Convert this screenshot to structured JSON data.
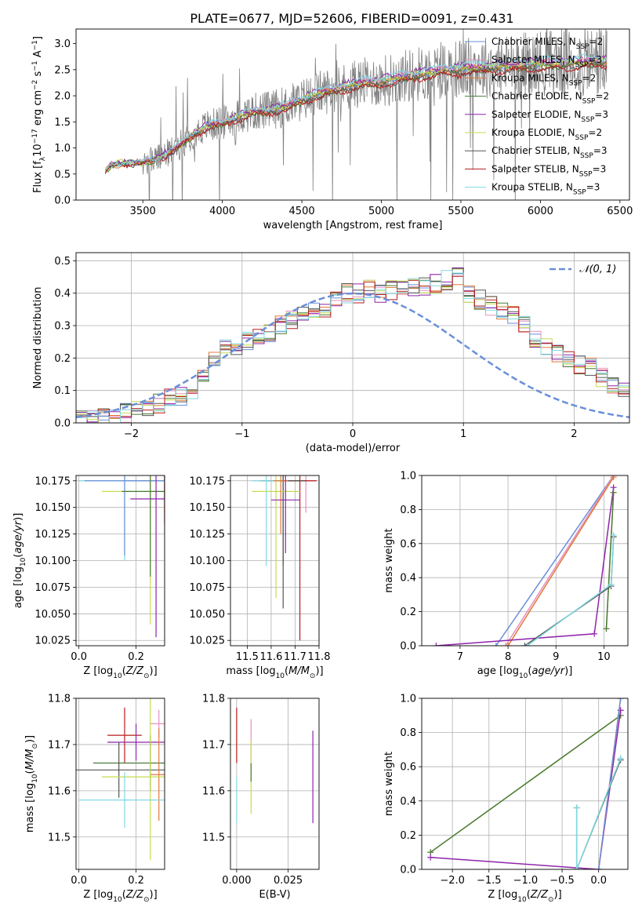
{
  "title": "PLATE=0677, MJD=52606, FIBERID=0091, z=0.431",
  "chart_data": [
    {
      "id": "spectrum",
      "type": "line",
      "xlabel": "wavelength [Angstrom, rest frame]",
      "ylabel": "Flux [f$_\\lambda$10$^{-17}$ erg cm$^{-2}$ s$^{-1}$ A$^{-1}$]",
      "ylabel_parts": [
        "Flux [f",
        "λ",
        "10",
        "−17",
        " erg cm",
        "−2",
        " s",
        "−1",
        " A",
        "−1",
        "]"
      ],
      "xlim": [
        3080,
        6560
      ],
      "ylim": [
        0,
        3.28
      ],
      "xticks": [
        3500,
        4000,
        4500,
        5000,
        5500,
        6000,
        6500
      ],
      "yticks": [
        0.0,
        0.5,
        1.0,
        1.5,
        2.0,
        2.5,
        3.0
      ],
      "grid": false,
      "legend_position": "top-right",
      "data_line": {
        "color": "#808080",
        "x_range": [
          3265,
          6420
        ]
      },
      "model_shape": {
        "x": [
          3265,
          3300,
          3400,
          3500,
          3600,
          3700,
          3800,
          3900,
          4000,
          4100,
          4200,
          4300,
          4400,
          4500,
          4600,
          4700,
          4800,
          4900,
          5000,
          5100,
          5200,
          5300,
          5400,
          5500,
          5600,
          5700,
          5800,
          5900,
          6000,
          6100,
          6200,
          6300,
          6420
        ],
        "y": [
          0.55,
          0.68,
          0.72,
          0.72,
          0.8,
          0.98,
          1.22,
          1.42,
          1.48,
          1.6,
          1.7,
          1.72,
          1.8,
          1.92,
          2.05,
          2.12,
          2.2,
          2.26,
          2.28,
          2.35,
          2.4,
          2.45,
          2.5,
          2.52,
          2.55,
          2.56,
          2.58,
          2.6,
          2.62,
          2.62,
          2.64,
          2.65,
          2.68
        ]
      },
      "series": [
        {
          "name": "Chabrier MILES, N$_{SSP}$=2",
          "label_prefix": "Chabrier MILES, N",
          "label_sub": "SSP",
          "label_suffix": "=2",
          "color": "#6a8fd8",
          "scale": 1.0
        },
        {
          "name": "Salpeter MILES, N$_{SSP}$=3",
          "label_prefix": "Salpeter MILES, N",
          "label_sub": "SSP",
          "label_suffix": "=3",
          "color": "#e88fc0",
          "scale": 1.01
        },
        {
          "name": "Kroupa MILES, N$_{SSP}$=2",
          "label_prefix": "Kroupa MILES, N",
          "label_sub": "SSP",
          "label_suffix": "=2",
          "color": "#e07838",
          "scale": 0.99
        },
        {
          "name": "Chabrier ELODIE, N$_{SSP}$=2",
          "label_prefix": "Chabrier ELODIE, N",
          "label_sub": "SSP",
          "label_suffix": "=2",
          "color": "#4a7a3a",
          "scale": 0.98
        },
        {
          "name": "Salpeter ELODIE, N$_{SSP}$=3",
          "label_prefix": "Salpeter ELODIE, N",
          "label_sub": "SSP",
          "label_suffix": "=3",
          "color": "#8e24aa",
          "scale": 1.02
        },
        {
          "name": "Kroupa ELODIE, N$_{SSP}$=2",
          "label_prefix": "Kroupa ELODIE, N",
          "label_sub": "SSP",
          "label_suffix": "=2",
          "color": "#c5dc50",
          "scale": 1.0
        },
        {
          "name": "Chabrier STELIB, N$_{SSP}$=3",
          "label_prefix": "Chabrier STELIB, N",
          "label_sub": "SSP",
          "label_suffix": "=3",
          "color": "#555555",
          "scale": 0.97
        },
        {
          "name": "Salpeter STELIB, N$_{SSP}$=3",
          "label_prefix": "Salpeter STELIB, N",
          "label_sub": "SSP",
          "label_suffix": "=3",
          "color": "#b71c1c",
          "scale": 0.96
        },
        {
          "name": "Kroupa STELIB, N$_{SSP}$=3",
          "label_prefix": "Kroupa STELIB, N",
          "label_sub": "SSP",
          "label_suffix": "=3",
          "color": "#80d8e0",
          "scale": 1.03
        }
      ]
    },
    {
      "id": "residuals",
      "type": "histogram",
      "xlabel": "(data-model)/error",
      "ylabel": "Normed distribution",
      "xlim": [
        -2.5,
        2.5
      ],
      "ylim": [
        0,
        0.525
      ],
      "xticks": [
        -2,
        -1,
        0,
        1,
        2
      ],
      "yticks": [
        0.0,
        0.1,
        0.2,
        0.3,
        0.4,
        0.5
      ],
      "grid": true,
      "legend_position": "top-right",
      "normal_curve": {
        "name": "𝒩(0, 1)",
        "color": "#6a8fd8"
      },
      "bins": {
        "start": -2.5,
        "width": 0.1
      },
      "base_heights": [
        0.01,
        0.01,
        0.02,
        0.02,
        0.03,
        0.04,
        0.05,
        0.06,
        0.08,
        0.08,
        0.09,
        0.14,
        0.2,
        0.24,
        0.22,
        0.25,
        0.26,
        0.28,
        0.3,
        0.32,
        0.33,
        0.34,
        0.35,
        0.38,
        0.4,
        0.4,
        0.41,
        0.4,
        0.41,
        0.42,
        0.42,
        0.42,
        0.43,
        0.44,
        0.45,
        0.4,
        0.38,
        0.36,
        0.35,
        0.33,
        0.3,
        0.26,
        0.24,
        0.21,
        0.2,
        0.18,
        0.17,
        0.14,
        0.12,
        0.1
      ],
      "series_colors": [
        "#6a8fd8",
        "#e88fc0",
        "#e07838",
        "#4a7a3a",
        "#8e24aa",
        "#c5dc50",
        "#555555",
        "#b71c1c",
        "#80d8e0"
      ]
    },
    {
      "id": "age-vs-Z",
      "type": "errorbar",
      "xlabel": "Z [log$_{10}$(Z/Z$_\\odot$)]",
      "ylabel": "age  [log$_{10}$(age/yr)]",
      "xlim": [
        -0.01,
        0.3
      ],
      "ylim": [
        10.02,
        10.18
      ],
      "xticks": [
        0.0,
        0.2
      ],
      "yticks": [
        10.025,
        10.05,
        10.075,
        10.1,
        10.125,
        10.15,
        10.175
      ],
      "grid": true,
      "points": [
        {
          "x": 0.3,
          "y": 10.175,
          "xerr": 0.15,
          "yerr": 0.05,
          "color": "#e88fc0"
        },
        {
          "x": 0.3,
          "y": 10.175,
          "xerr": 0.14,
          "yerr": 0.03,
          "color": "#e07838"
        },
        {
          "x": 0.3,
          "y": 10.175,
          "xerr": 0.13,
          "yerr": 0.04,
          "color": "#b71c1c"
        },
        {
          "x": 0.3,
          "y": 10.175,
          "xerr": 0.12,
          "yerr": 0.02,
          "color": "#555555"
        },
        {
          "x": 0.16,
          "y": 10.175,
          "xerr": 0.16,
          "yerr": 0.075,
          "color": "#80d8e0"
        },
        {
          "x": 0.16,
          "y": 10.175,
          "xerr": 0.14,
          "yerr": 0.07,
          "color": "#6a8fd8"
        },
        {
          "x": 0.25,
          "y": 10.165,
          "xerr": 0.17,
          "yerr": 0.125,
          "color": "#c5dc50"
        },
        {
          "x": 0.25,
          "y": 10.165,
          "xerr": 0.1,
          "yerr": 0.08,
          "color": "#4a7a3a"
        },
        {
          "x": 0.27,
          "y": 10.158,
          "xerr": 0.09,
          "yerr": 0.13,
          "color": "#8e24aa"
        }
      ]
    },
    {
      "id": "age-vs-mass",
      "type": "errorbar",
      "xlabel": "mass [log$_{10}$(M/M$_\\odot$)]",
      "ylabel": "",
      "xlim": [
        11.43,
        11.8
      ],
      "ylim": [
        10.02,
        10.18
      ],
      "xticks": [
        11.5,
        11.6,
        11.7,
        11.8
      ],
      "yticks": [
        10.025,
        10.05,
        10.075,
        10.1,
        10.125,
        10.15,
        10.175
      ],
      "grid": true,
      "points": [
        {
          "x": 11.745,
          "y": 10.175,
          "xerr": 0.04,
          "yerr": 0.03,
          "color": "#e88fc0"
        },
        {
          "x": 11.65,
          "y": 10.175,
          "xerr": 0.1,
          "yerr": 0.08,
          "color": "#4a7a3a"
        },
        {
          "x": 11.72,
          "y": 10.175,
          "xerr": 0.07,
          "yerr": 0.15,
          "color": "#b71c1c"
        },
        {
          "x": 11.65,
          "y": 10.175,
          "xerr": 0.09,
          "yerr": 0.12,
          "color": "#555555"
        },
        {
          "x": 11.58,
          "y": 10.175,
          "xerr": 0.06,
          "yerr": 0.08,
          "color": "#80d8e0"
        },
        {
          "x": 11.62,
          "y": 10.165,
          "xerr": 0.1,
          "yerr": 0.1,
          "color": "#c5dc50"
        },
        {
          "x": 11.64,
          "y": 10.175,
          "xerr": 0.03,
          "yerr": 0.05,
          "color": "#e07838"
        },
        {
          "x": 11.66,
          "y": 10.157,
          "xerr": 0.06,
          "yerr": 0.05,
          "color": "#8e24aa"
        }
      ]
    },
    {
      "id": "weight-vs-age",
      "type": "line",
      "xlabel": "age  [log$_{10}$(age/yr)]",
      "ylabel": "mass weight",
      "xlim": [
        6.2,
        10.5
      ],
      "ylim": [
        0,
        1.0
      ],
      "xticks": [
        7,
        8,
        9,
        10
      ],
      "yticks": [
        0.0,
        0.2,
        0.4,
        0.6,
        0.8,
        1.0
      ],
      "grid": true,
      "series": [
        {
          "color": "#6a8fd8",
          "x": [
            7.75,
            10.2
          ],
          "y": [
            0.0,
            1.0
          ]
        },
        {
          "color": "#e88fc0",
          "x": [
            7.95,
            10.2
          ],
          "y": [
            0.0,
            1.0
          ]
        },
        {
          "color": "#e07838",
          "x": [
            8.0,
            10.2
          ],
          "y": [
            0.0,
            0.99
          ]
        },
        {
          "color": "#8e24aa",
          "x": [
            6.5,
            9.8,
            10.2
          ],
          "y": [
            0.0,
            0.07,
            0.93
          ]
        },
        {
          "color": "#c5dc50",
          "x": [
            10.05,
            10.2
          ],
          "y": [
            0.1,
            0.9
          ]
        },
        {
          "color": "#4a7a3a",
          "x": [
            10.05,
            10.2
          ],
          "y": [
            0.1,
            0.9
          ]
        },
        {
          "color": "#555555",
          "x": [
            8.35,
            10.15,
            10.2
          ],
          "y": [
            0.0,
            0.35,
            0.64
          ]
        },
        {
          "color": "#80d8e0",
          "x": [
            8.4,
            10.15,
            10.2
          ],
          "y": [
            0.0,
            0.36,
            0.65
          ]
        }
      ]
    },
    {
      "id": "mass-vs-Z",
      "type": "errorbar",
      "xlabel": "Z [log$_{10}$(Z/Z$_\\odot$)]",
      "ylabel": "mass [log$_{10}$(M/M$_\\odot$)]",
      "xlim": [
        -0.01,
        0.3
      ],
      "ylim": [
        11.43,
        11.8
      ],
      "xticks": [
        0.0,
        0.2
      ],
      "yticks": [
        11.5,
        11.6,
        11.7,
        11.8
      ],
      "grid": true,
      "points": [
        {
          "x": 0.16,
          "y": 11.72,
          "xerr": 0.06,
          "yerr": 0.06,
          "color": "#b71c1c"
        },
        {
          "x": 0.28,
          "y": 11.745,
          "xerr": 0.03,
          "yerr": 0.03,
          "color": "#e88fc0"
        },
        {
          "x": 0.2,
          "y": 11.705,
          "xerr": 0.1,
          "yerr": 0.04,
          "color": "#8e24aa"
        },
        {
          "x": 0.25,
          "y": 11.66,
          "xerr": 0.2,
          "yerr": 0.06,
          "color": "#4a7a3a"
        },
        {
          "x": 0.14,
          "y": 11.645,
          "xerr": 0.16,
          "yerr": 0.06,
          "color": "#555555"
        },
        {
          "x": 0.28,
          "y": 11.635,
          "xerr": 0.03,
          "yerr": 0.1,
          "color": "#e07838"
        },
        {
          "x": 0.25,
          "y": 11.63,
          "xerr": 0.17,
          "yerr": 0.18,
          "color": "#c5dc50"
        },
        {
          "x": 0.16,
          "y": 11.58,
          "xerr": 0.16,
          "yerr": 0.06,
          "color": "#80d8e0"
        }
      ]
    },
    {
      "id": "mass-vs-EBV",
      "type": "errorbar",
      "xlabel": "E(B-V)",
      "ylabel": "",
      "xlim": [
        -0.003,
        0.04
      ],
      "ylim": [
        11.43,
        11.8
      ],
      "xticks": [
        0.0,
        0.025
      ],
      "tick_labels": [
        "0.000",
        "0.025"
      ],
      "yticks": [
        11.5,
        11.6,
        11.7,
        11.8
      ],
      "grid": true,
      "points": [
        {
          "x": 0.0,
          "y": 11.72,
          "xerr": 0,
          "yerr": 0.06,
          "color": "#b71c1c"
        },
        {
          "x": 0.0,
          "y": 11.58,
          "xerr": 0,
          "yerr": 0.05,
          "color": "#80d8e0"
        },
        {
          "x": 0.007,
          "y": 11.71,
          "xerr": 0,
          "yerr": 0.045,
          "color": "#e88fc0"
        },
        {
          "x": 0.007,
          "y": 11.63,
          "xerr": 0,
          "yerr": 0.08,
          "color": "#c5dc50"
        },
        {
          "x": 0.007,
          "y": 11.64,
          "xerr": 0,
          "yerr": 0.02,
          "color": "#4a7a3a"
        },
        {
          "x": 0.037,
          "y": 11.63,
          "xerr": 0,
          "yerr": 0.1,
          "color": "#8e24aa"
        }
      ]
    },
    {
      "id": "weight-vs-Z",
      "type": "line",
      "xlabel": "Z [log$_{10}$(Z/Z$_\\odot$)]",
      "ylabel": "mass weight",
      "xlim": [
        -2.42,
        0.4
      ],
      "ylim": [
        0,
        1.0
      ],
      "xticks": [
        -2.0,
        -1.5,
        -1.0,
        -0.5,
        0.0
      ],
      "tick_labels": [
        "−2.0",
        "−1.5",
        "−1.0",
        "−0.5",
        "0.0"
      ],
      "yticks": [
        0.0,
        0.2,
        0.4,
        0.6,
        0.8,
        1.0
      ],
      "grid": true,
      "series": [
        {
          "color": "#c5dc50",
          "x": [
            -2.3,
            0.3
          ],
          "y": [
            0.1,
            0.9
          ]
        },
        {
          "color": "#4a7a3a",
          "x": [
            -2.3,
            0.3
          ],
          "y": [
            0.1,
            0.9
          ]
        },
        {
          "color": "#8e24aa",
          "x": [
            -2.3,
            0.0,
            0.3
          ],
          "y": [
            0.07,
            0.0,
            0.93
          ]
        },
        {
          "color": "#e07838",
          "x": [
            0.0,
            0.3
          ],
          "y": [
            0.0,
            1.0
          ]
        },
        {
          "color": "#6a8fd8",
          "x": [
            0.0,
            0.3
          ],
          "y": [
            0.0,
            1.0
          ]
        },
        {
          "color": "#555555",
          "x": [
            -0.3,
            -0.3,
            0.3
          ],
          "y": [
            0.36,
            0.0,
            0.64
          ]
        },
        {
          "color": "#80d8e0",
          "x": [
            -0.3,
            -0.3,
            0.3
          ],
          "y": [
            0.36,
            0.0,
            0.65
          ]
        }
      ]
    }
  ]
}
